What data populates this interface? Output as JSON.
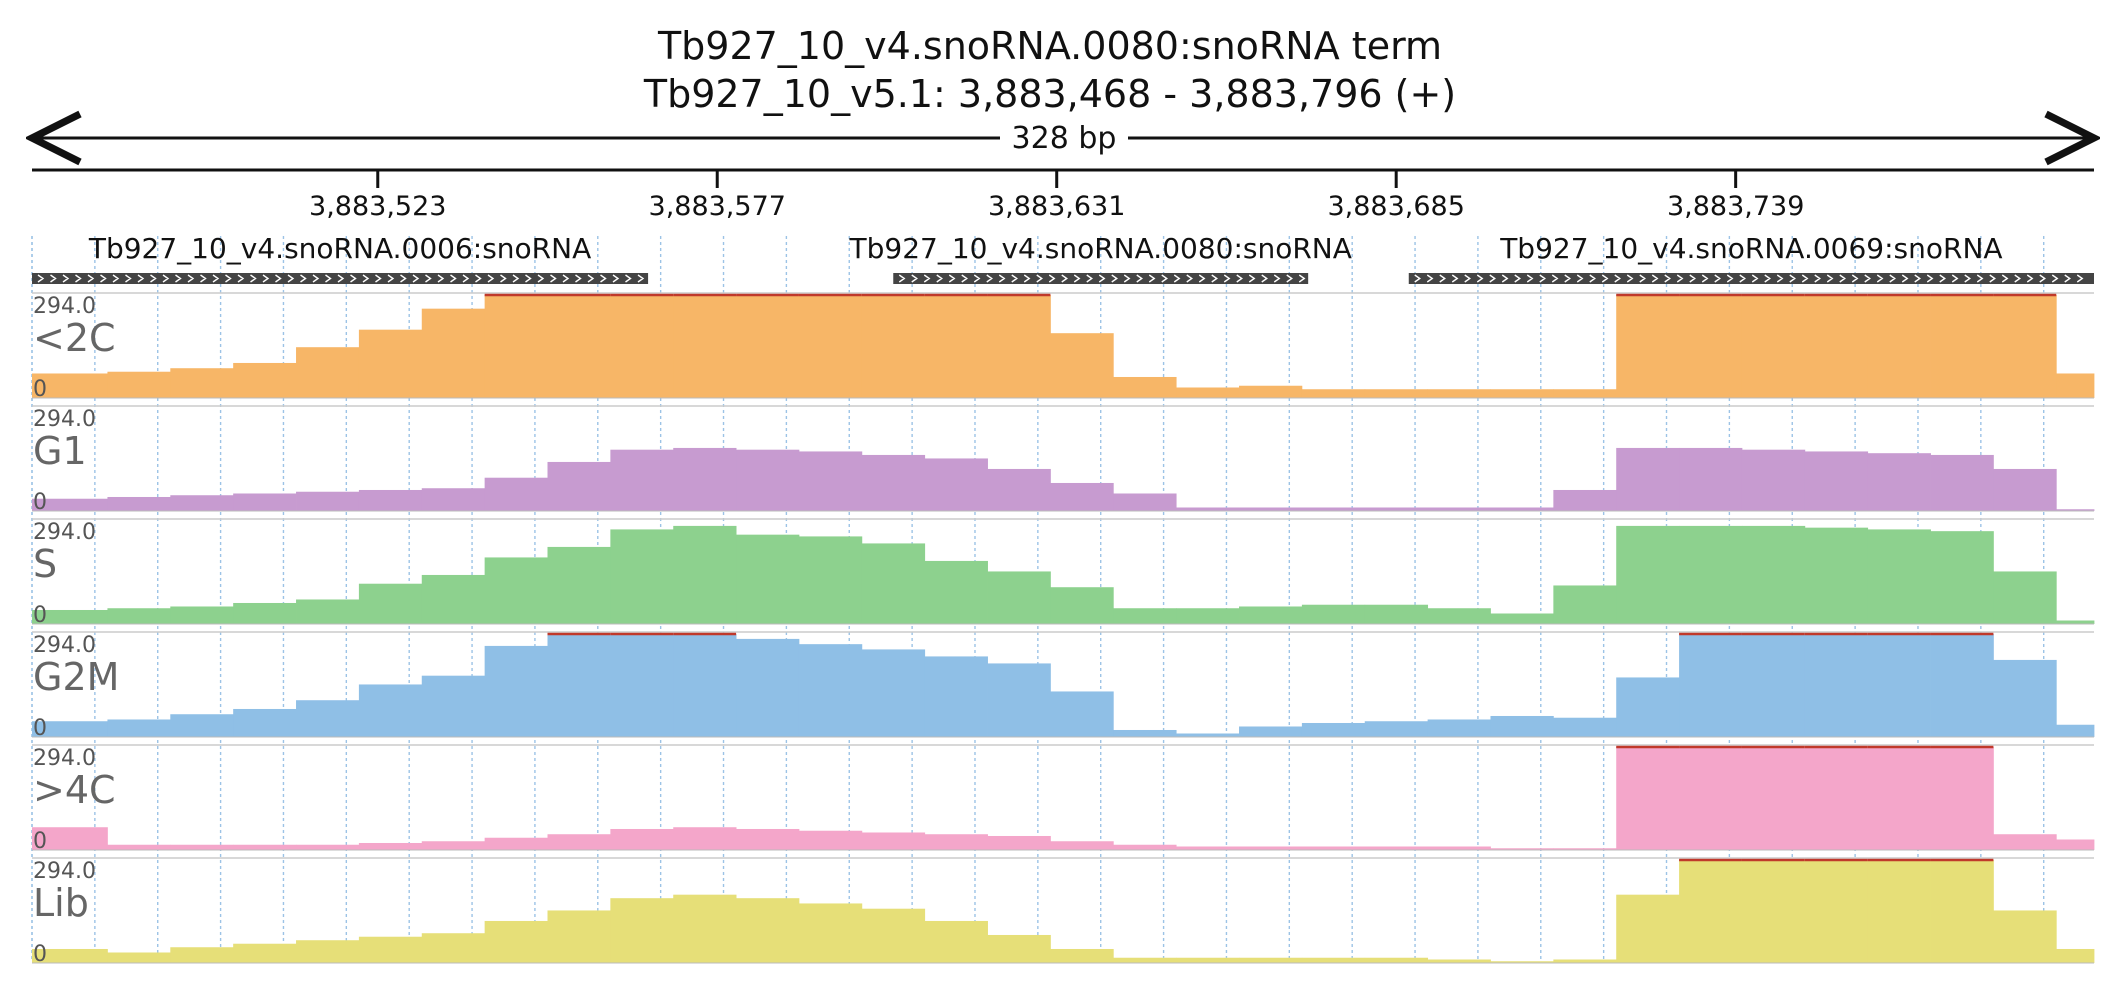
{
  "header": {
    "title": "Tb927_10_v4.snoRNA.0080:snoRNA  term",
    "locus": "Tb927_10_v5.1: 3,883,468 - 3,883,796 (+)",
    "span_label": "328 bp"
  },
  "colors": {
    "<2C": "#f7b667",
    "G1": "#c79bd0",
    "S": "#8dd18e",
    "G2M": "#8fbfe6",
    ">4C": "#f4a6ca",
    "Lib": "#e6df78",
    "feature": "#444444",
    "clip": "#c0392b",
    "grid": "#9cc3e6"
  },
  "chart_data": {
    "type": "area",
    "start": 3883468,
    "end": 3883796,
    "ticks": [
      3883523,
      3883577,
      3883631,
      3883685,
      3883739
    ],
    "tick_labels": [
      "3,883,523",
      "3,883,577",
      "3,883,631",
      "3,883,685",
      "3,883,739"
    ],
    "features": [
      {
        "name": "Tb927_10_v4.snoRNA.0006:snoRNA",
        "start": 3883468,
        "end": 3883566,
        "strand": "+"
      },
      {
        "name": "Tb927_10_v4.snoRNA.0080:snoRNA",
        "start": 3883605,
        "end": 3883671,
        "strand": "+"
      },
      {
        "name": "Tb927_10_v4.snoRNA.0069:snoRNA",
        "start": 3883687,
        "end": 3883796,
        "strand": "+"
      }
    ],
    "y_range": [
      0,
      294.0
    ],
    "y_max_label": "294.0",
    "y_min_label": "0",
    "bin_width": 10,
    "bins_start": [
      3883468,
      3883480,
      3883490,
      3883500,
      3883510,
      3883520,
      3883530,
      3883540,
      3883550,
      3883560,
      3883570,
      3883580,
      3883590,
      3883600,
      3883610,
      3883620,
      3883630,
      3883640,
      3883650,
      3883660,
      3883670,
      3883680,
      3883690,
      3883700,
      3883710,
      3883720,
      3883730,
      3883740,
      3883750,
      3883760,
      3883770,
      3883780,
      3883790
    ],
    "series": [
      {
        "name": "<2C",
        "values": [
          70,
          75,
          85,
          100,
          145,
          195,
          255,
          300,
          300,
          300,
          300,
          300,
          300,
          300,
          300,
          300,
          185,
          60,
          30,
          35,
          25,
          25,
          25,
          25,
          25,
          300,
          300,
          300,
          300,
          300,
          300,
          300,
          70
        ]
      },
      {
        "name": "G1",
        "values": [
          35,
          40,
          45,
          50,
          55,
          60,
          65,
          95,
          140,
          175,
          180,
          175,
          170,
          160,
          150,
          120,
          80,
          50,
          10,
          10,
          10,
          10,
          10,
          10,
          60,
          180,
          180,
          175,
          170,
          165,
          160,
          120,
          5
        ]
      },
      {
        "name": "S",
        "values": [
          40,
          45,
          50,
          60,
          70,
          115,
          140,
          190,
          220,
          270,
          280,
          255,
          250,
          230,
          180,
          150,
          105,
          45,
          45,
          50,
          55,
          55,
          45,
          30,
          110,
          280,
          280,
          280,
          275,
          270,
          265,
          150,
          10
        ]
      },
      {
        "name": "G2M",
        "values": [
          45,
          50,
          65,
          80,
          105,
          150,
          175,
          260,
          300,
          300,
          300,
          280,
          265,
          250,
          230,
          210,
          130,
          20,
          10,
          30,
          40,
          45,
          50,
          60,
          55,
          170,
          300,
          300,
          300,
          300,
          300,
          220,
          35
        ]
      },
      {
        "name": ">4C",
        "values": [
          65,
          15,
          15,
          15,
          15,
          20,
          25,
          35,
          45,
          60,
          65,
          60,
          55,
          50,
          45,
          40,
          25,
          15,
          10,
          10,
          10,
          10,
          10,
          5,
          5,
          300,
          300,
          300,
          300,
          300,
          300,
          45,
          30
        ]
      },
      {
        "name": "Lib",
        "values": [
          40,
          30,
          45,
          55,
          65,
          75,
          85,
          120,
          150,
          185,
          195,
          185,
          170,
          155,
          120,
          80,
          40,
          15,
          15,
          15,
          15,
          15,
          10,
          5,
          10,
          195,
          300,
          300,
          300,
          300,
          300,
          150,
          40
        ]
      }
    ]
  }
}
